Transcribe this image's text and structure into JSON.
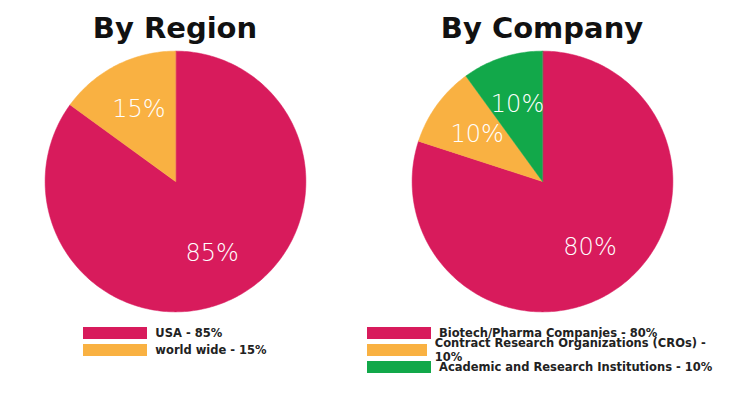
{
  "chart_data": [
    {
      "type": "pie",
      "title": "By Region",
      "categories": [
        "USA - 85%",
        "world wide - 15%"
      ],
      "values": [
        85,
        15
      ],
      "value_labels": [
        "85%",
        "15%"
      ],
      "colors": [
        "#d81b5c",
        "#f9b142"
      ],
      "data_labels": true,
      "legend": "bottom"
    },
    {
      "type": "pie",
      "title": "By Company",
      "categories": [
        "Biotech/Pharma Companies - 80%",
        "Contract Research Organizations (CROs) - 10%",
        "Academic and Research Institutions - 10%"
      ],
      "values": [
        80,
        10,
        10
      ],
      "value_labels": [
        "80%",
        "10%",
        "10%"
      ],
      "colors": [
        "#d81b5c",
        "#f9b142",
        "#12a84a"
      ],
      "data_labels": true,
      "legend": "bottom"
    }
  ]
}
